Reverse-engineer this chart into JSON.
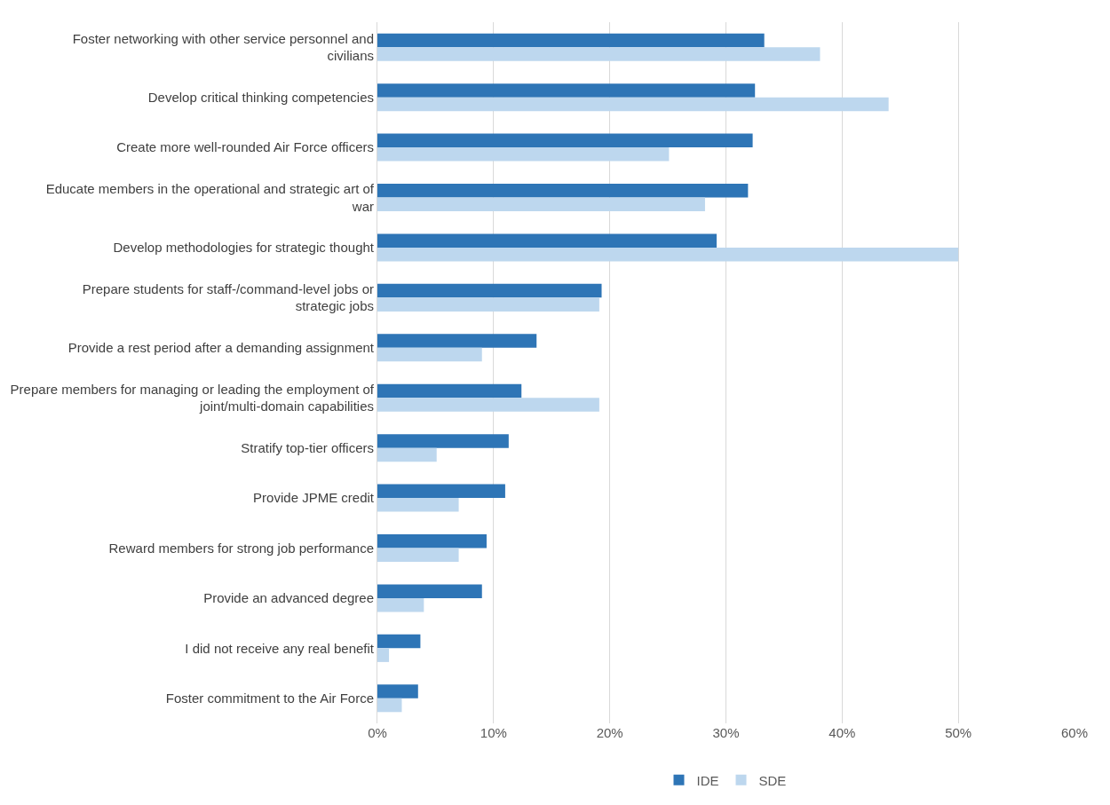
{
  "chart_data": {
    "type": "bar",
    "orientation": "horizontal",
    "categories": [
      "Foster networking with other service personnel and civilians",
      "Develop critical thinking competencies",
      "Create more well-rounded Air Force officers",
      "Educate members in the operational and strategic art of war",
      "Develop methodologies for strategic thought",
      "Prepare students for staff-/command-level jobs or strategic jobs",
      "Provide a rest period after a demanding assignment",
      "Prepare members for managing or leading the employment of joint/multi-domain capabilities",
      "Stratify top-tier officers",
      "Provide JPME credit",
      "Reward members for strong job performance",
      "Provide an advanced degree",
      "I did not receive any real benefit",
      "Foster commitment to the Air Force"
    ],
    "series": [
      {
        "name": "IDE",
        "color": "#2e75b6",
        "values": [
          33.3,
          32.5,
          32.3,
          31.9,
          29.2,
          19.3,
          13.7,
          12.4,
          11.3,
          11.0,
          9.4,
          9.0,
          3.7,
          3.5
        ]
      },
      {
        "name": "SDE",
        "color": "#bdd7ee",
        "values": [
          38.1,
          44.0,
          25.1,
          28.2,
          50.0,
          19.1,
          9.0,
          19.1,
          5.1,
          7.0,
          7.0,
          4.0,
          1.0,
          2.1
        ]
      }
    ],
    "xlim": [
      0,
      60
    ],
    "xticks": [
      {
        "value": 0,
        "label": "0%"
      },
      {
        "value": 10,
        "label": "10%"
      },
      {
        "value": 20,
        "label": "20%"
      },
      {
        "value": 30,
        "label": "30%"
      },
      {
        "value": 40,
        "label": "40%"
      },
      {
        "value": 50,
        "label": "50%"
      },
      {
        "value": 60,
        "label": "60%"
      }
    ],
    "grid": "x",
    "legend": "bottom"
  }
}
